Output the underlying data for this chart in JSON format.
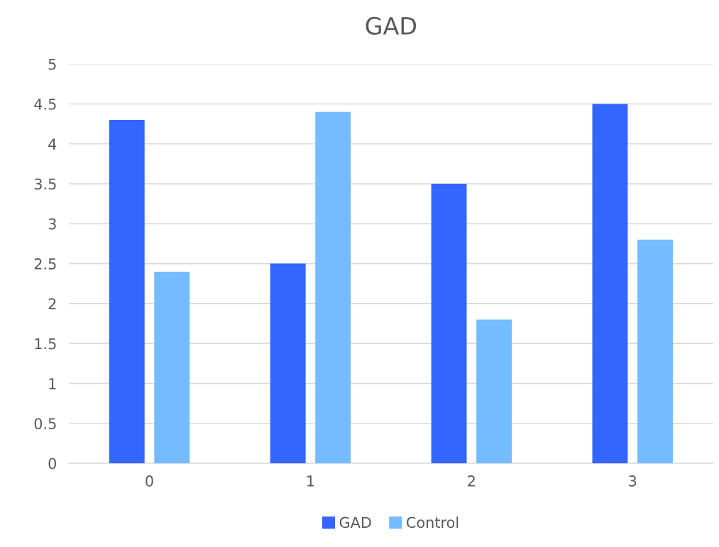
{
  "chart_data": {
    "type": "bar",
    "title": "GAD",
    "categories": [
      "0",
      "1",
      "2",
      "3"
    ],
    "series": [
      {
        "name": "GAD",
        "color": "#3366ff",
        "values": [
          4.3,
          2.5,
          3.5,
          4.5
        ]
      },
      {
        "name": "Control",
        "color": "#74bcff",
        "values": [
          2.4,
          4.4,
          1.8,
          2.8
        ]
      }
    ],
    "ylim": [
      0,
      5
    ],
    "yticks": [
      0,
      0.5,
      1,
      1.5,
      2,
      2.5,
      3,
      3.5,
      4,
      4.5,
      5
    ],
    "grid": "y",
    "legend": "bottom"
  }
}
